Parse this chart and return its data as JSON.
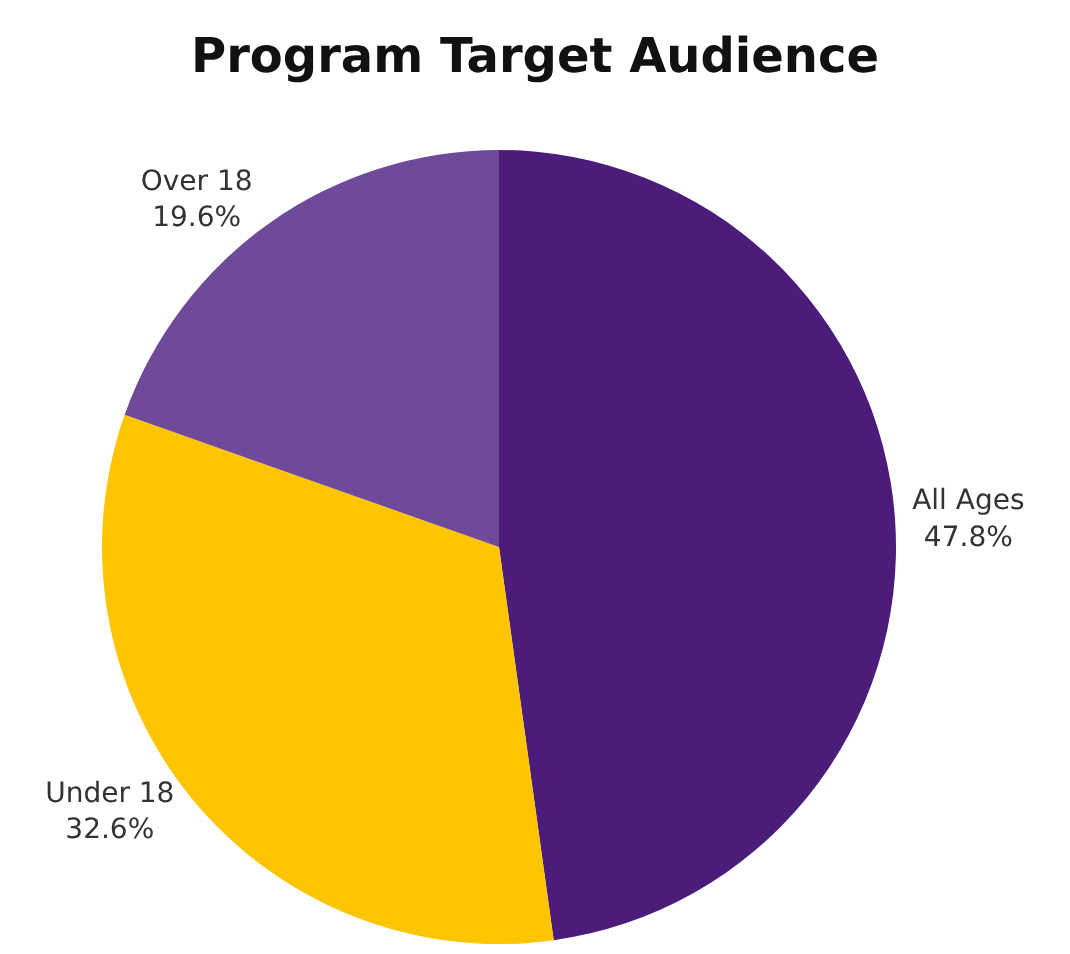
{
  "chart_data": {
    "type": "pie",
    "title": "Program Target Audience",
    "categories": [
      "All Ages",
      "Under 18",
      "Over 18"
    ],
    "values": [
      47.8,
      32.6,
      19.6
    ],
    "value_labels": [
      "47.8%",
      "32.6%",
      "19.6%"
    ],
    "colors": [
      "#4b1c7a",
      "#fcc500",
      "#6f4a9a"
    ]
  }
}
